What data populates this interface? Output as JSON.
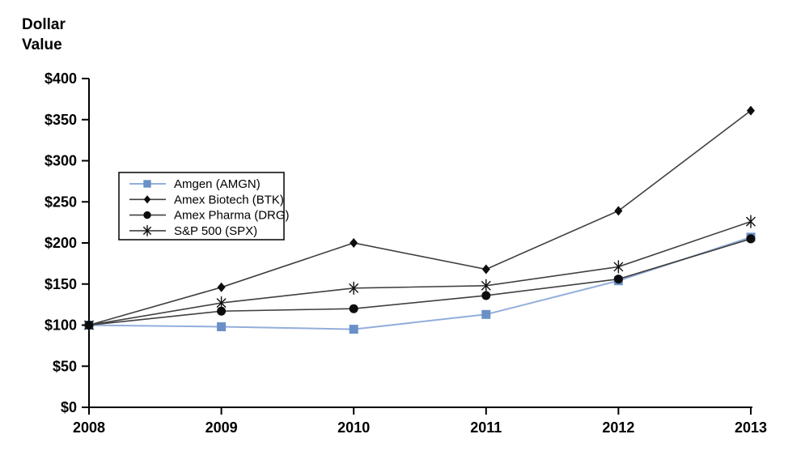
{
  "labels": {
    "y_axis_title": "Dollar\nValue"
  },
  "colors": {
    "axis": "#000000",
    "black_series_line": "#404040",
    "black_series_marker": "#0d0d0d",
    "amgen_line": "#93aedb",
    "amgen_marker": "#6a90c7",
    "legend_border": "#000000",
    "legend_background": "#ffffff"
  },
  "chart_data": {
    "type": "line",
    "title": "",
    "ylabel": "Dollar Value",
    "xlabel": "",
    "grid": false,
    "legend_position": "inside-upper-left",
    "ylim": [
      0,
      400
    ],
    "x": [
      "2008",
      "2009",
      "2010",
      "2011",
      "2012",
      "2013"
    ],
    "yticks": [
      "$0",
      "$50",
      "$100",
      "$150",
      "$200",
      "$250",
      "$300",
      "$350",
      "$400"
    ],
    "ytick_values": [
      0,
      50,
      100,
      150,
      200,
      250,
      300,
      350,
      400
    ],
    "series": [
      {
        "name": "Amgen (AMGN)",
        "marker": "square",
        "line_color": "#93aedb",
        "marker_color": "#6a90c7",
        "values": [
          100,
          98,
          95,
          113,
          154,
          207
        ]
      },
      {
        "name": "Amex Biotech (BTK)",
        "marker": "diamond",
        "line_color": "#404040",
        "marker_color": "#0d0d0d",
        "values": [
          100,
          146,
          200,
          168,
          239,
          361
        ]
      },
      {
        "name": "Amex Pharma (DRG)",
        "marker": "circle",
        "line_color": "#404040",
        "marker_color": "#0d0d0d",
        "values": [
          100,
          117,
          120,
          136,
          156,
          205
        ]
      },
      {
        "name": "S&P 500 (SPX)",
        "marker": "asterisk",
        "line_color": "#404040",
        "marker_color": "#0d0d0d",
        "values": [
          100,
          127,
          145,
          148,
          171,
          226
        ]
      }
    ]
  }
}
